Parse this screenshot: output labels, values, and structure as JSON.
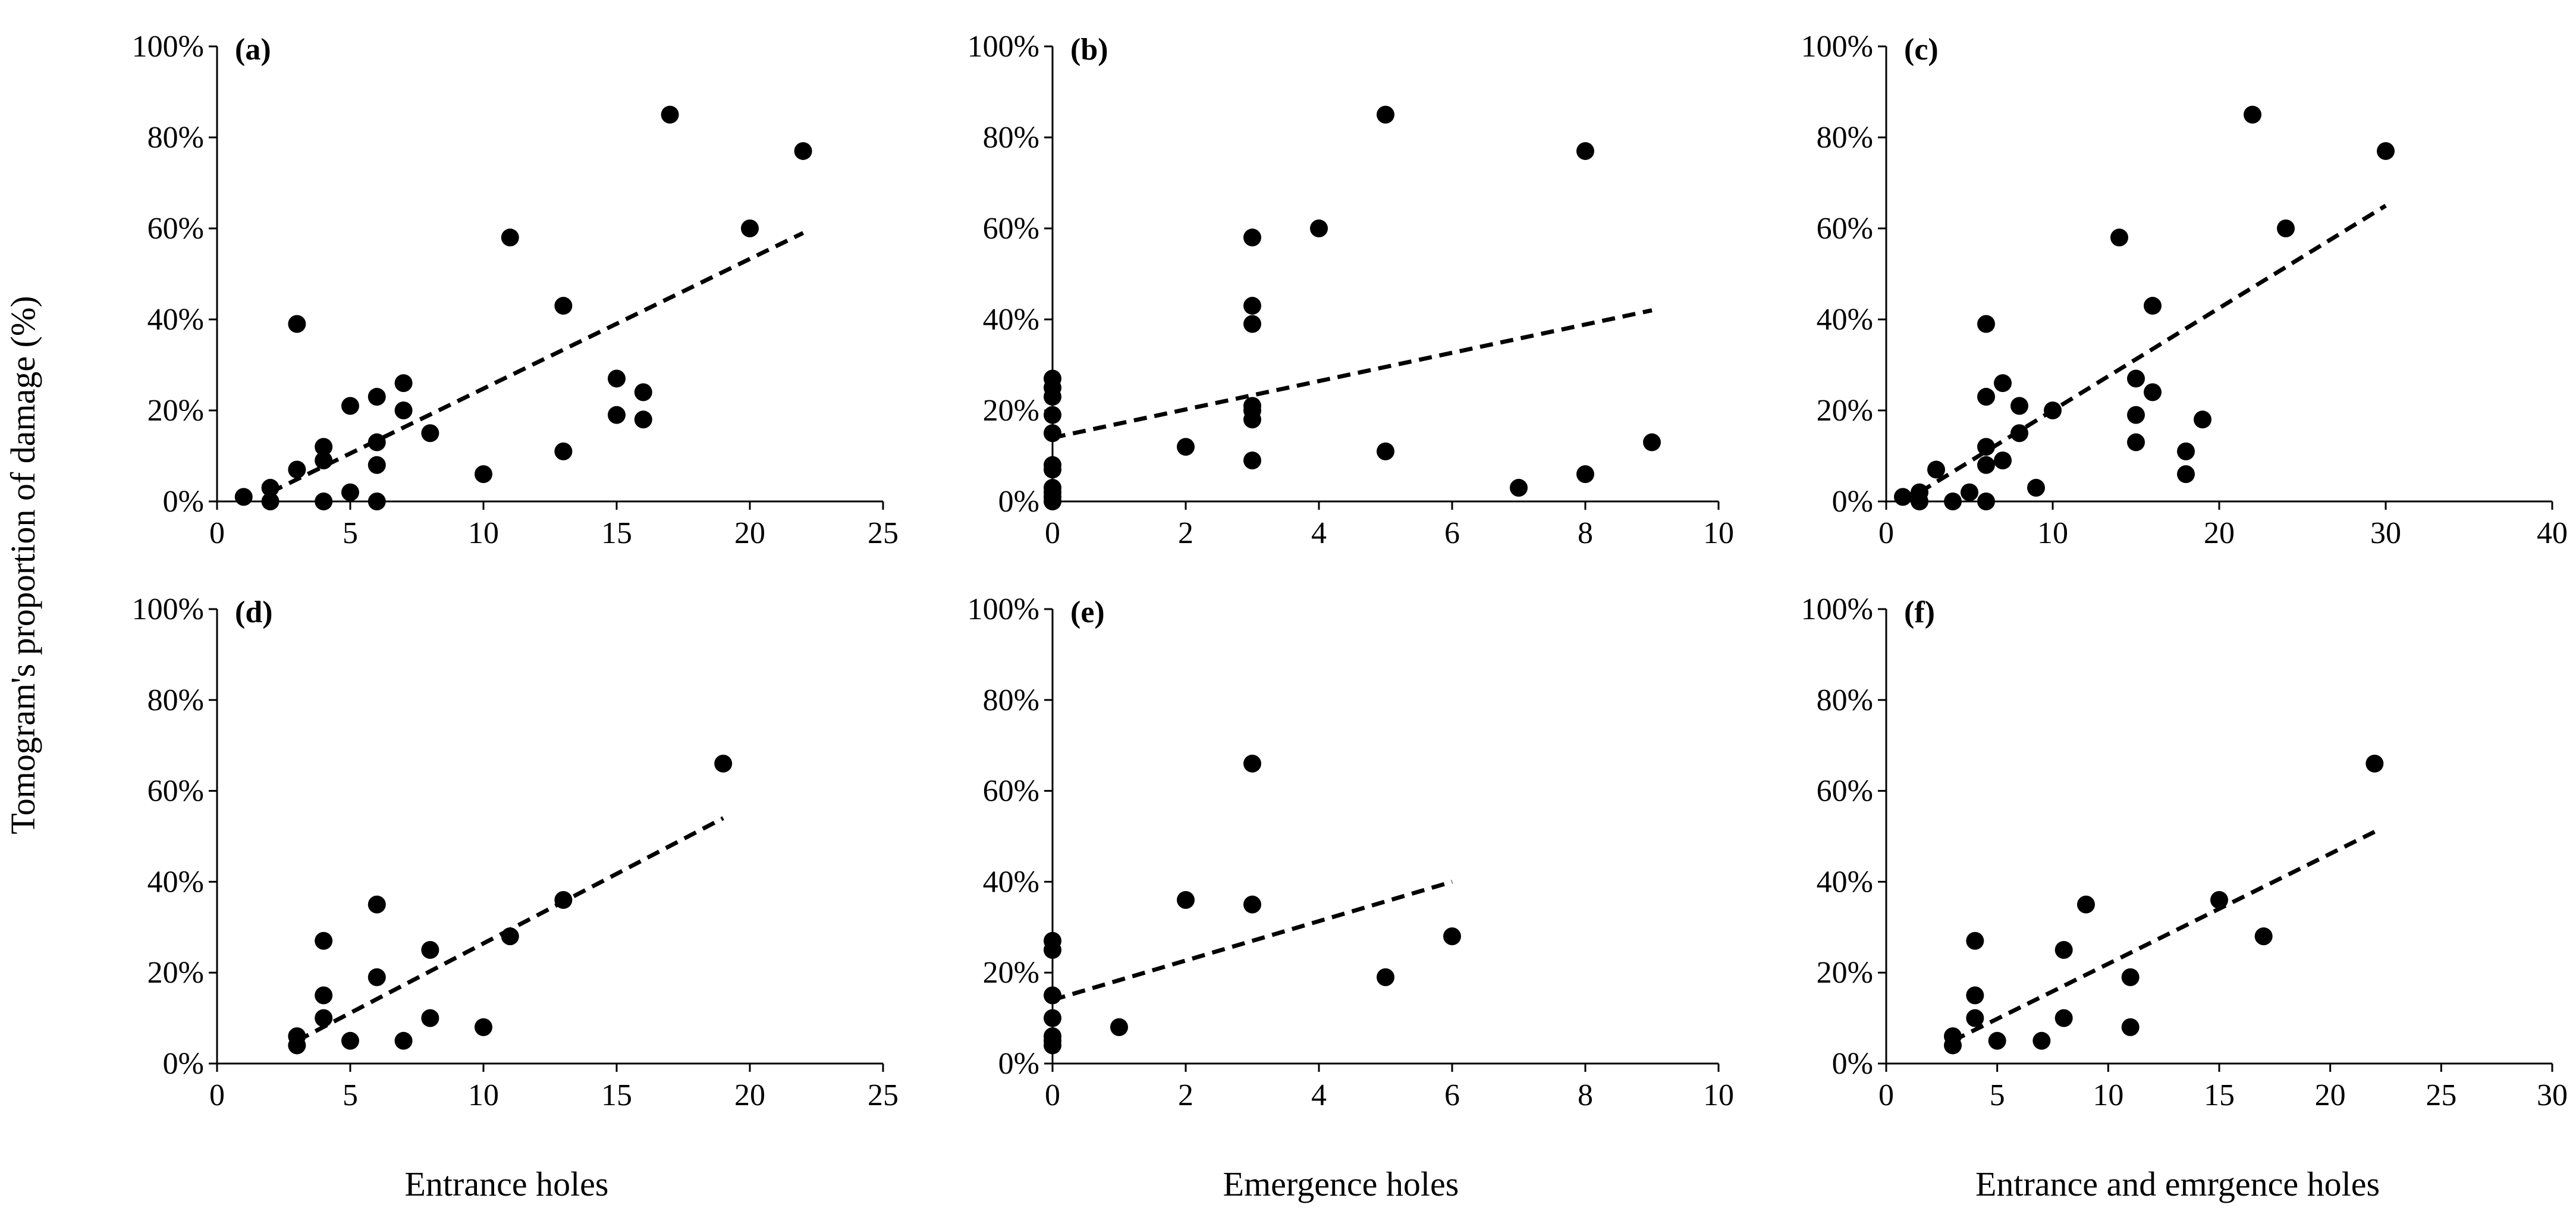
{
  "figure": {
    "ylabel": "Tomogram's proportion of damage (%)",
    "xlabels": [
      "Entrance holes",
      "Emergence holes",
      "Entrance and emrgence holes"
    ],
    "colors": {
      "marker": "#000000",
      "axis": "#000000",
      "background": "#ffffff"
    }
  },
  "chart_data": [
    {
      "type": "scatter",
      "panel": "(a)",
      "xlim": [
        0,
        25
      ],
      "xticks": [
        0,
        5,
        10,
        15,
        20,
        25
      ],
      "ylim": [
        0,
        100
      ],
      "yticks": [
        0,
        20,
        40,
        60,
        80,
        100
      ],
      "yformat": "percent",
      "points": [
        [
          1,
          1
        ],
        [
          2,
          0
        ],
        [
          2,
          3
        ],
        [
          3,
          7
        ],
        [
          3,
          39
        ],
        [
          4,
          0
        ],
        [
          4,
          9
        ],
        [
          4,
          12
        ],
        [
          5,
          2
        ],
        [
          5,
          21
        ],
        [
          6,
          0
        ],
        [
          6,
          8
        ],
        [
          6,
          13
        ],
        [
          6,
          23
        ],
        [
          7,
          20
        ],
        [
          7,
          26
        ],
        [
          8,
          15
        ],
        [
          10,
          6
        ],
        [
          11,
          58
        ],
        [
          13,
          11
        ],
        [
          13,
          43
        ],
        [
          15,
          19
        ],
        [
          15,
          27
        ],
        [
          16,
          18
        ],
        [
          16,
          24
        ],
        [
          17,
          85
        ],
        [
          20,
          60
        ],
        [
          22,
          77
        ]
      ],
      "trendline": {
        "style": "dashed",
        "x": [
          2,
          22
        ],
        "y": [
          2,
          59
        ]
      }
    },
    {
      "type": "scatter",
      "panel": "(b)",
      "xlim": [
        0,
        10
      ],
      "xticks": [
        0,
        2,
        4,
        6,
        8,
        10
      ],
      "ylim": [
        0,
        100
      ],
      "yticks": [
        0,
        20,
        40,
        60,
        80,
        100
      ],
      "yformat": "percent",
      "points": [
        [
          0,
          0
        ],
        [
          0,
          1
        ],
        [
          0,
          2
        ],
        [
          0,
          3
        ],
        [
          0,
          7
        ],
        [
          0,
          8
        ],
        [
          0,
          15
        ],
        [
          0,
          19
        ],
        [
          0,
          23
        ],
        [
          0,
          25
        ],
        [
          0,
          27
        ],
        [
          2,
          12
        ],
        [
          3,
          9
        ],
        [
          3,
          18
        ],
        [
          3,
          20
        ],
        [
          3,
          21
        ],
        [
          3,
          39
        ],
        [
          3,
          43
        ],
        [
          3,
          58
        ],
        [
          4,
          60
        ],
        [
          5,
          11
        ],
        [
          5,
          85
        ],
        [
          7,
          3
        ],
        [
          8,
          6
        ],
        [
          8,
          77
        ],
        [
          9,
          13
        ]
      ],
      "trendline": {
        "style": "dashed",
        "x": [
          0,
          9
        ],
        "y": [
          14,
          42
        ]
      }
    },
    {
      "type": "scatter",
      "panel": "(c)",
      "xlim": [
        0,
        40
      ],
      "xticks": [
        0,
        10,
        20,
        30,
        40
      ],
      "ylim": [
        0,
        100
      ],
      "yticks": [
        0,
        20,
        40,
        60,
        80,
        100
      ],
      "yformat": "percent",
      "points": [
        [
          1,
          1
        ],
        [
          2,
          0
        ],
        [
          2,
          2
        ],
        [
          3,
          7
        ],
        [
          4,
          0
        ],
        [
          5,
          2
        ],
        [
          6,
          0
        ],
        [
          6,
          8
        ],
        [
          6,
          12
        ],
        [
          6,
          23
        ],
        [
          6,
          39
        ],
        [
          7,
          9
        ],
        [
          7,
          26
        ],
        [
          8,
          15
        ],
        [
          8,
          21
        ],
        [
          9,
          3
        ],
        [
          10,
          20
        ],
        [
          14,
          58
        ],
        [
          15,
          13
        ],
        [
          15,
          19
        ],
        [
          15,
          27
        ],
        [
          16,
          24
        ],
        [
          16,
          43
        ],
        [
          18,
          6
        ],
        [
          18,
          11
        ],
        [
          19,
          18
        ],
        [
          22,
          85
        ],
        [
          24,
          60
        ],
        [
          30,
          77
        ]
      ],
      "trendline": {
        "style": "dashed",
        "x": [
          2,
          30
        ],
        "y": [
          2,
          65
        ]
      }
    },
    {
      "type": "scatter",
      "panel": "(d)",
      "xlim": [
        0,
        25
      ],
      "xticks": [
        0,
        5,
        10,
        15,
        20,
        25
      ],
      "ylim": [
        0,
        100
      ],
      "yticks": [
        0,
        20,
        40,
        60,
        80,
        100
      ],
      "yformat": "percent",
      "points": [
        [
          3,
          4
        ],
        [
          3,
          6
        ],
        [
          4,
          10
        ],
        [
          4,
          15
        ],
        [
          4,
          27
        ],
        [
          5,
          5
        ],
        [
          6,
          19
        ],
        [
          6,
          35
        ],
        [
          7,
          5
        ],
        [
          8,
          10
        ],
        [
          8,
          25
        ],
        [
          10,
          8
        ],
        [
          11,
          28
        ],
        [
          13,
          36
        ],
        [
          19,
          66
        ]
      ],
      "trendline": {
        "style": "dashed",
        "x": [
          3,
          19
        ],
        "y": [
          5,
          54
        ]
      }
    },
    {
      "type": "scatter",
      "panel": "(e)",
      "xlim": [
        0,
        10
      ],
      "xticks": [
        0,
        2,
        4,
        6,
        8,
        10
      ],
      "ylim": [
        0,
        100
      ],
      "yticks": [
        0,
        20,
        40,
        60,
        80,
        100
      ],
      "yformat": "percent",
      "points": [
        [
          0,
          4
        ],
        [
          0,
          5
        ],
        [
          0,
          6
        ],
        [
          0,
          10
        ],
        [
          0,
          15
        ],
        [
          0,
          25
        ],
        [
          0,
          27
        ],
        [
          1,
          8
        ],
        [
          2,
          36
        ],
        [
          3,
          35
        ],
        [
          3,
          66
        ],
        [
          5,
          19
        ],
        [
          6,
          28
        ]
      ],
      "trendline": {
        "style": "dashed",
        "x": [
          0,
          6
        ],
        "y": [
          14,
          40
        ]
      }
    },
    {
      "type": "scatter",
      "panel": "(f)",
      "xlim": [
        0,
        30
      ],
      "xticks": [
        0,
        5,
        10,
        15,
        20,
        25,
        30
      ],
      "ylim": [
        0,
        100
      ],
      "yticks": [
        0,
        20,
        40,
        60,
        80,
        100
      ],
      "yformat": "percent",
      "points": [
        [
          3,
          4
        ],
        [
          3,
          6
        ],
        [
          4,
          10
        ],
        [
          4,
          15
        ],
        [
          4,
          27
        ],
        [
          5,
          5
        ],
        [
          7,
          5
        ],
        [
          8,
          10
        ],
        [
          8,
          25
        ],
        [
          9,
          35
        ],
        [
          11,
          8
        ],
        [
          11,
          19
        ],
        [
          15,
          36
        ],
        [
          17,
          28
        ],
        [
          22,
          66
        ]
      ],
      "trendline": {
        "style": "dashed",
        "x": [
          3,
          22
        ],
        "y": [
          5,
          51
        ]
      }
    }
  ]
}
